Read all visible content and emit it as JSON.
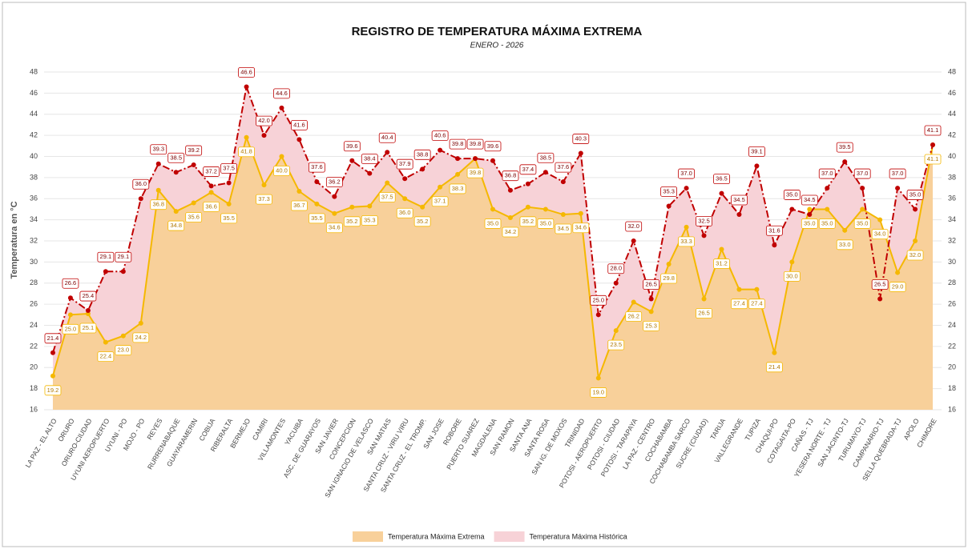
{
  "chart_data": {
    "type": "line",
    "title": "REGISTRO DE TEMPERATURA MÁXIMA EXTREMA",
    "subtitle": "ENERO - 2026",
    "y_label": "Temperatura en °C",
    "categories": [
      "LA PAZ - EL ALTO",
      "ORURO",
      "ORURO-CIUDAD",
      "UYUNI AEROPUERTO",
      "UYUNI - PO",
      "MOJO - PO",
      "REYES",
      "RURRENABAQUE",
      "GUAYARAMERIN",
      "COBIJA",
      "RIBERALTA",
      "BERMEJO",
      "CAMIRI",
      "VILLAMONTES",
      "YACUIBA",
      "ASC. DE GUARAYOS",
      "SAN JAVIER",
      "CONCEPCION",
      "SAN IGNACIO DE VELASCO",
      "SAN MATIAS",
      "SANTA CRUZ - VIRU VIRU",
      "SANTA CRUZ - EL TROMP.",
      "SAN JOSE",
      "ROBORE",
      "PUERTO SUAREZ",
      "MAGDALENA",
      "SAN RAMON",
      "SANTA ANA",
      "SANTA ROSA",
      "SAN IG. DE MOXOS",
      "TRINIDAD",
      "POTOSI - AEROPUERTO",
      "POTOSI - CIUDAD",
      "POTOSI - TARAPAYA",
      "LA PAZ - CENTRO",
      "COCHABAMBA",
      "COCHABAMBA SARCO",
      "SUCRE (CIUDAD)",
      "TARIJA",
      "VALLEGRANDE",
      "TUPIZA",
      "CHAQUI-PO",
      "COTAGAITA-PO",
      "CAÑAS - TJ",
      "YESERA NORTE - TJ",
      "SAN JACINTO-TJ",
      "TURUMAYO-TJ",
      "CAMPANARIO-TJ",
      "SELLA QUEBRADA-TJ",
      "APOLO",
      "CHIMORE"
    ],
    "series": [
      {
        "name": "Temperatura Máxima Extrema",
        "color": "#f5b800",
        "fill_color": "#f8d09a",
        "values": [
          19.2,
          25.0,
          25.1,
          22.4,
          23.0,
          24.2,
          36.8,
          34.8,
          35.6,
          36.6,
          35.5,
          41.8,
          37.3,
          40.0,
          36.7,
          35.5,
          34.6,
          35.2,
          35.3,
          37.5,
          36.0,
          35.2,
          37.1,
          38.3,
          39.8,
          35.0,
          34.2,
          35.2,
          35.0,
          34.5,
          34.6,
          19.0,
          23.5,
          26.2,
          25.3,
          29.8,
          33.3,
          26.5,
          31.2,
          27.4,
          27.4,
          21.4,
          30.0,
          35.0,
          35.0,
          33.0,
          35.0,
          34.0,
          29.0,
          32.0,
          41.1
        ],
        "value_labels": [
          "19.2",
          "25.0",
          "25.1",
          "22.4",
          "23.0",
          "24.2",
          "36.8",
          "34.8",
          "35.6",
          "36.6",
          "35.5",
          "41.8",
          "37.3",
          "40.0",
          "36.7",
          "35.5",
          "34.6",
          "35.2",
          "35.3",
          "37.5",
          "36.0",
          "35.2",
          "37.1",
          "38.3",
          "39.8",
          "35.0",
          "34.2",
          "35.2",
          "35.0",
          "34.5",
          "34.6",
          "19.0",
          "23.5",
          "26.2",
          "25.3",
          "29.8",
          "33.3",
          "26.5",
          "31.2",
          "27.4",
          "27.4",
          "21.4",
          "30.0",
          "35.0",
          "35.0",
          "33.0",
          "35.0",
          "34.0",
          "29.0",
          "32.0",
          "41.1"
        ]
      },
      {
        "name": "Temperatura Máxima Histórica",
        "color": "#c00000",
        "fill_color": "#f7d2d7",
        "values": [
          21.4,
          26.6,
          25.4,
          29.1,
          29.1,
          36.0,
          39.3,
          38.5,
          39.2,
          37.2,
          37.5,
          46.6,
          42.0,
          44.6,
          41.6,
          37.6,
          36.2,
          39.6,
          38.4,
          40.4,
          37.9,
          38.8,
          40.6,
          39.8,
          39.8,
          39.6,
          36.8,
          37.4,
          38.5,
          37.6,
          40.3,
          25.0,
          28.0,
          32.0,
          26.5,
          35.3,
          37.0,
          32.5,
          36.5,
          34.5,
          39.1,
          31.6,
          35.0,
          34.5,
          37.0,
          39.5,
          37.0,
          26.5,
          37.0,
          35.0,
          41.1
        ],
        "value_labels": [
          "21.4",
          "26.6",
          "25.4",
          "29.1",
          "29.1",
          "36.0",
          "39.3",
          "38.5",
          "39.2",
          "37.2",
          "37.5",
          "46.6",
          "42.0",
          "44.6",
          "41.6",
          "37.6",
          "36.2",
          "39.6",
          "38.4",
          "40.4",
          "37.9",
          "38.8",
          "40.6",
          "39.8",
          "39.8",
          "39.6",
          "36.8",
          "37.4",
          "38.5",
          "37.6",
          "40.3",
          "25.0",
          "28.0",
          "32.0",
          "26.5",
          "35.3",
          "37.0",
          "32.5",
          "36.5",
          "34.5",
          "39.1",
          "31.6",
          "35.0",
          "34.5",
          "37.0",
          "39.5",
          "37.0",
          "26.5",
          "37.0",
          "35.0",
          "41.1"
        ]
      }
    ],
    "ylim": [
      16,
      48
    ],
    "yticks": [
      16,
      18,
      20,
      22,
      24,
      26,
      28,
      30,
      32,
      34,
      36,
      38,
      40,
      42,
      44,
      46,
      48
    ],
    "grid": true,
    "legend": "bottom"
  }
}
